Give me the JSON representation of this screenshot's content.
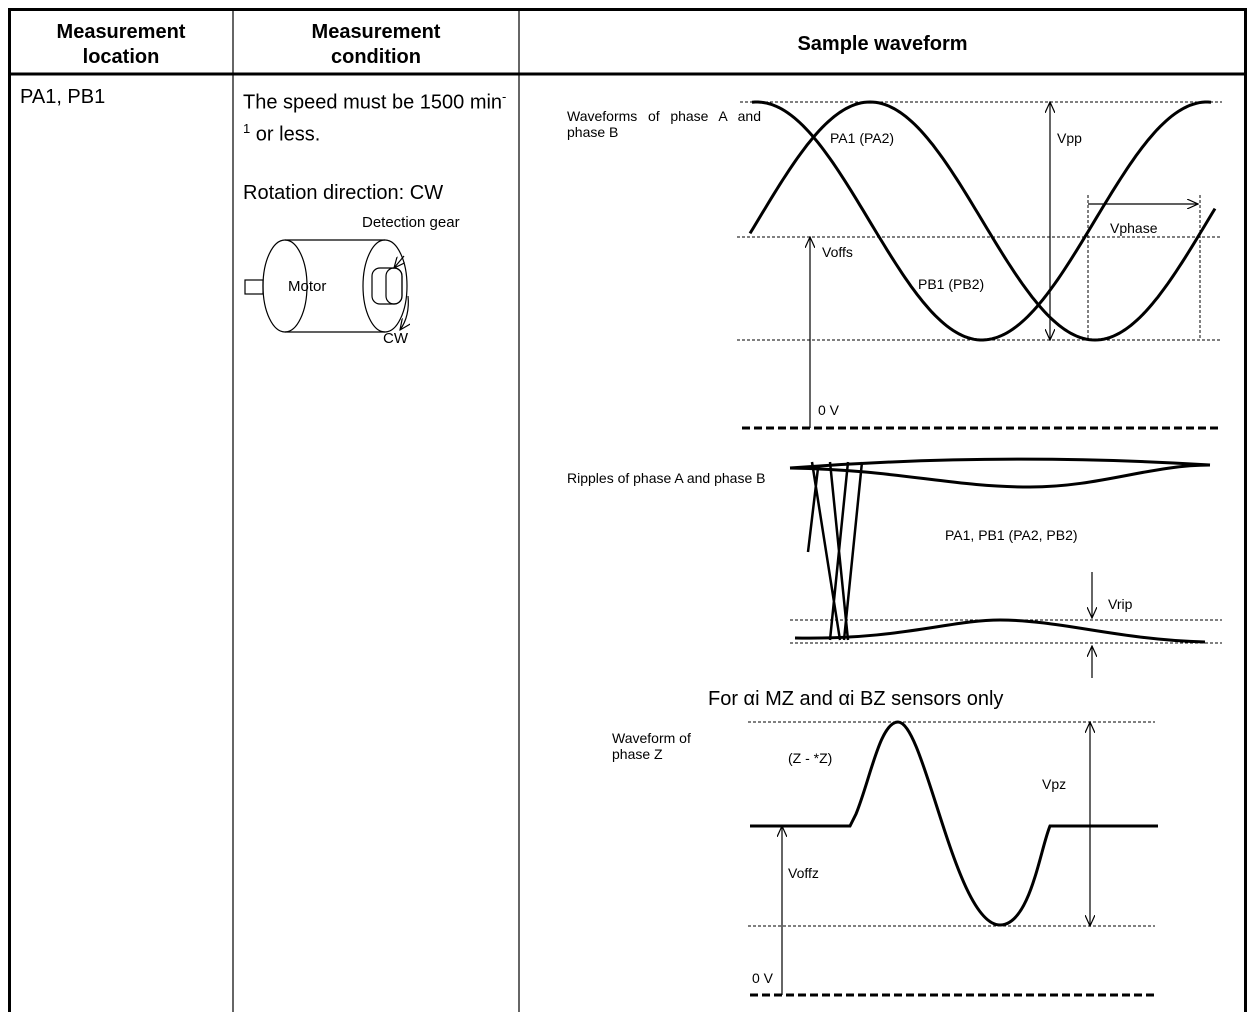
{
  "table": {
    "headers": [
      "Measurement location",
      "Measurement condition",
      "Sample waveform"
    ],
    "rows": [
      {
        "location": "PA1, PB1",
        "condition": {
          "speed": "The speed must be 1500 min",
          "speed_exponent": "-1",
          "speed_suffix": " or less.",
          "rotation": "Rotation direction: CW",
          "diagram": {
            "gear": "Detection gear",
            "motor": "Motor",
            "direction": "CW"
          }
        },
        "waveform": {
          "phase_ab": {
            "title": "Waveforms of phase A and phase B",
            "curve_a": "PA1 (PA2)",
            "curve_b": "PB1 (PB2)",
            "vpp": "Vpp",
            "vphase": "Vphase",
            "voffs": "Voffs",
            "zero": "0 V"
          },
          "ripple": {
            "title": "Ripples of phase A and phase B",
            "curve": "PA1, PB1 (PA2, PB2)",
            "vrip": "Vrip"
          },
          "note": "For αi MZ and αi BZ sensors only",
          "phase_z": {
            "title": "Waveform of phase Z",
            "curve": "(Z - *Z)",
            "vpz": "Vpz",
            "voffz": "Voffz",
            "zero": "0 V"
          }
        }
      }
    ]
  }
}
